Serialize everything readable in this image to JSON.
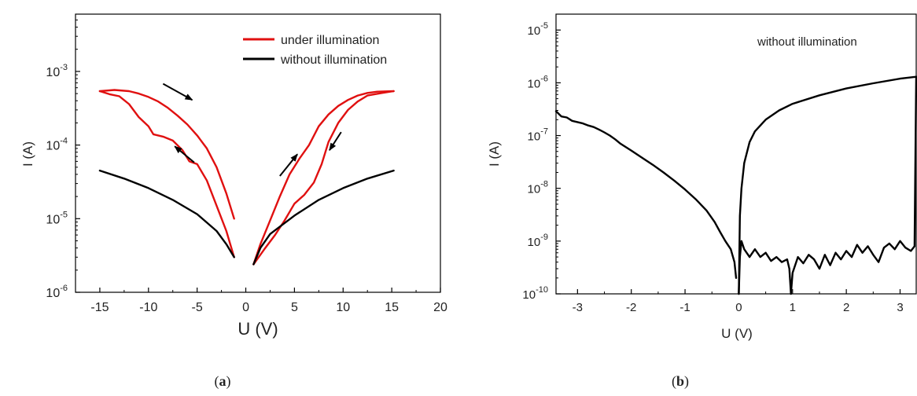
{
  "panels": [
    {
      "id": "a",
      "label_open": "(",
      "label_letter": "a",
      "label_close": ")",
      "chart_data": {
        "type": "line",
        "title": "",
        "xlabel": "U (V)",
        "ylabel": "I (A)",
        "x_scale": "linear",
        "y_scale": "log",
        "xlim": [
          -17.5,
          20
        ],
        "ylim": [
          1e-06,
          0.006
        ],
        "x_ticks": [
          -15,
          -10,
          -5,
          0,
          5,
          10,
          15,
          20
        ],
        "x_tick_labels": [
          "-15",
          "-10",
          "-5",
          "0",
          "5",
          "10",
          "15",
          "20"
        ],
        "y_ticks": [
          {
            "value": 1e-06,
            "base": "10",
            "exp": "-6"
          },
          {
            "value": 1e-05,
            "base": "10",
            "exp": "-5"
          },
          {
            "value": 0.0001,
            "base": "10",
            "exp": "-4"
          },
          {
            "value": 0.001,
            "base": "10",
            "exp": "-3"
          }
        ],
        "grid": false,
        "legend_position": "top-right",
        "series": [
          {
            "name": "under illumination",
            "color": "#e01010",
            "segments": [
              [
                [
                  -1.2,
                  1e-05
                ],
                [
                  -2,
                  2.2e-05
                ],
                [
                  -3,
                  5e-05
                ],
                [
                  -4,
                  9e-05
                ],
                [
                  -5,
                  0.000135
                ],
                [
                  -6,
                  0.00019
                ],
                [
                  -7,
                  0.00025
                ],
                [
                  -8,
                  0.00032
                ],
                [
                  -9,
                  0.00039
                ],
                [
                  -10,
                  0.00045
                ],
                [
                  -11,
                  0.0005
                ],
                [
                  -12,
                  0.00054
                ],
                [
                  -13.5,
                  0.00056
                ],
                [
                  -15,
                  0.00054
                ]
              ],
              [
                [
                  -15,
                  0.00054
                ],
                [
                  -14,
                  0.00049
                ],
                [
                  -13,
                  0.00046
                ],
                [
                  -12,
                  0.00036
                ],
                [
                  -11,
                  0.00024
                ],
                [
                  -10,
                  0.00018
                ],
                [
                  -9.5,
                  0.00014
                ],
                [
                  -8.5,
                  0.00013
                ],
                [
                  -7.5,
                  0.000115
                ],
                [
                  -6.5,
                  8.5e-05
                ],
                [
                  -5.8,
                  6e-05
                ],
                [
                  -5,
                  5.5e-05
                ],
                [
                  -4,
                  3.3e-05
                ],
                [
                  -3,
                  1.5e-05
                ],
                [
                  -2,
                  6.8e-06
                ],
                [
                  -1.2,
                  3e-06
                ]
              ],
              [
                [
                  0.8,
                  2.4e-06
                ],
                [
                  1.5,
                  4.5e-06
                ],
                [
                  2.5,
                  9.5e-06
                ],
                [
                  3.5,
                  2e-05
                ],
                [
                  4.5,
                  4e-05
                ],
                [
                  5.5,
                  6.5e-05
                ],
                [
                  6.5,
                  0.0001
                ],
                [
                  7.5,
                  0.00018
                ],
                [
                  8.5,
                  0.00026
                ],
                [
                  9.5,
                  0.00034
                ],
                [
                  10.5,
                  0.00041
                ],
                [
                  11.5,
                  0.00047
                ],
                [
                  12.5,
                  0.00051
                ],
                [
                  13.5,
                  0.00053
                ],
                [
                  15.2,
                  0.00054
                ]
              ],
              [
                [
                  15.2,
                  0.00054
                ],
                [
                  14,
                  0.00051
                ],
                [
                  12.5,
                  0.00047
                ],
                [
                  11.5,
                  0.00039
                ],
                [
                  10.5,
                  0.0003
                ],
                [
                  9.5,
                  0.0002
                ],
                [
                  8.5,
                  0.00011
                ],
                [
                  7.8,
                  5.5e-05
                ],
                [
                  7,
                  3.1e-05
                ],
                [
                  6,
                  2.1e-05
                ],
                [
                  5,
                  1.6e-05
                ],
                [
                  4,
                  9.5e-06
                ],
                [
                  3,
                  6e-06
                ],
                [
                  2,
                  4e-06
                ],
                [
                  0.8,
                  2.4e-06
                ]
              ]
            ]
          },
          {
            "name": "without illumination",
            "color": "#000000",
            "segments": [
              [
                [
                  -15,
                  4.5e-05
                ],
                [
                  -12.5,
                  3.5e-05
                ],
                [
                  -10,
                  2.6e-05
                ],
                [
                  -7.5,
                  1.8e-05
                ],
                [
                  -5,
                  1.15e-05
                ],
                [
                  -3,
                  6.8e-06
                ],
                [
                  -2,
                  4.5e-06
                ],
                [
                  -1.2,
                  3e-06
                ]
              ],
              [
                [
                  0.8,
                  2.4e-06
                ],
                [
                  1.5,
                  4e-06
                ],
                [
                  2.5,
                  6.2e-06
                ],
                [
                  5,
                  1.1e-05
                ],
                [
                  7.5,
                  1.8e-05
                ],
                [
                  10,
                  2.6e-05
                ],
                [
                  12.5,
                  3.5e-05
                ],
                [
                  15.2,
                  4.5e-05
                ]
              ]
            ]
          }
        ],
        "arrows": [
          {
            "from": [
              -8.5,
              0.00068
            ],
            "to": [
              -5.5,
              0.00041
            ]
          },
          {
            "from": [
              -5.3,
              5.8e-05
            ],
            "to": [
              -7.3,
              9.6e-05
            ]
          },
          {
            "from": [
              3.5,
              3.8e-05
            ],
            "to": [
              5.3,
              7.5e-05
            ]
          },
          {
            "from": [
              9.8,
              0.00015
            ],
            "to": [
              8.6,
              8.5e-05
            ]
          }
        ]
      }
    },
    {
      "id": "b",
      "label_open": "(",
      "label_letter": "b",
      "label_close": ")",
      "chart_data": {
        "type": "line",
        "title": "",
        "annotation": "without illumination",
        "xlabel": "U (V)",
        "ylabel": "I (A)",
        "x_scale": "linear",
        "y_scale": "log",
        "xlim": [
          -3.4,
          3.3
        ],
        "ylim": [
          1e-10,
          2e-05
        ],
        "x_ticks": [
          -3,
          -2,
          -1,
          0,
          1,
          2,
          3
        ],
        "x_tick_labels": [
          "-3",
          "-2",
          "-1",
          "0",
          "1",
          "2",
          "3"
        ],
        "y_ticks": [
          {
            "value": 1e-10,
            "base": "10",
            "exp": "-10"
          },
          {
            "value": 1e-09,
            "base": "10",
            "exp": "-9"
          },
          {
            "value": 1e-08,
            "base": "10",
            "exp": "-8"
          },
          {
            "value": 1e-07,
            "base": "10",
            "exp": "-7"
          },
          {
            "value": 1e-06,
            "base": "10",
            "exp": "-6"
          },
          {
            "value": 1e-05,
            "base": "10",
            "exp": "-5"
          }
        ],
        "grid": false,
        "series": [
          {
            "color": "#000000",
            "segments": [
              [
                [
                  -3.4,
                  2.9e-07
                ],
                [
                  -3.3,
                  2.3e-07
                ],
                [
                  -3.2,
                  2.2e-07
                ],
                [
                  -3.1,
                  1.9e-07
                ],
                [
                  -3.0,
                  1.8e-07
                ],
                [
                  -2.9,
                  1.7e-07
                ],
                [
                  -2.8,
                  1.55e-07
                ],
                [
                  -2.7,
                  1.45e-07
                ],
                [
                  -2.6,
                  1.3e-07
                ],
                [
                  -2.5,
                  1.15e-07
                ],
                [
                  -2.4,
                  1e-07
                ],
                [
                  -2.3,
                  8.5e-08
                ],
                [
                  -2.2,
                  7e-08
                ],
                [
                  -2.0,
                  5.2e-08
                ],
                [
                  -1.8,
                  3.8e-08
                ],
                [
                  -1.6,
                  2.8e-08
                ],
                [
                  -1.4,
                  2e-08
                ],
                [
                  -1.2,
                  1.4e-08
                ],
                [
                  -1.0,
                  9.5e-09
                ],
                [
                  -0.8,
                  6.2e-09
                ],
                [
                  -0.6,
                  3.8e-09
                ],
                [
                  -0.45,
                  2.3e-09
                ],
                [
                  -0.35,
                  1.5e-09
                ],
                [
                  -0.25,
                  1e-09
                ],
                [
                  -0.15,
                  7e-10
                ],
                [
                  -0.08,
                  4e-10
                ],
                [
                  -0.05,
                  2e-10
                ]
              ],
              [
                [
                  0.0,
                  1e-10
                ],
                [
                  0.02,
                  3e-09
                ],
                [
                  0.05,
                  1e-08
                ],
                [
                  0.1,
                  3e-08
                ],
                [
                  0.2,
                  7.5e-08
                ],
                [
                  0.3,
                  1.2e-07
                ],
                [
                  0.5,
                  2e-07
                ],
                [
                  0.75,
                  3e-07
                ],
                [
                  1.0,
                  4e-07
                ],
                [
                  1.5,
                  5.8e-07
                ],
                [
                  2.0,
                  7.8e-07
                ],
                [
                  2.5,
                  9.8e-07
                ],
                [
                  3.0,
                  1.2e-06
                ],
                [
                  3.3,
                  1.3e-06
                ]
              ],
              [
                [
                  3.3,
                  1.3e-06
                ],
                [
                  3.28,
                  1e-08
                ],
                [
                  3.27,
                  8e-10
                ],
                [
                  3.2,
                  6.5e-10
                ],
                [
                  3.1,
                  7.5e-10
                ],
                [
                  3.0,
                  1e-09
                ],
                [
                  2.9,
                  7e-10
                ],
                [
                  2.8,
                  9e-10
                ],
                [
                  2.7,
                  7.5e-10
                ],
                [
                  2.6,
                  4e-10
                ],
                [
                  2.5,
                  5.5e-10
                ],
                [
                  2.4,
                  8e-10
                ],
                [
                  2.3,
                  6e-10
                ],
                [
                  2.2,
                  8.5e-10
                ],
                [
                  2.1,
                  5e-10
                ],
                [
                  2.0,
                  6.5e-10
                ],
                [
                  1.9,
                  4.5e-10
                ],
                [
                  1.8,
                  6e-10
                ],
                [
                  1.7,
                  3.5e-10
                ],
                [
                  1.6,
                  5.5e-10
                ],
                [
                  1.5,
                  3e-10
                ],
                [
                  1.4,
                  4.5e-10
                ],
                [
                  1.3,
                  5.5e-10
                ],
                [
                  1.2,
                  3.8e-10
                ],
                [
                  1.1,
                  5e-10
                ],
                [
                  1.0,
                  2.5e-10
                ],
                [
                  0.97,
                  1e-10
                ],
                [
                  0.94,
                  3e-10
                ],
                [
                  0.9,
                  4.5e-10
                ],
                [
                  0.8,
                  4e-10
                ],
                [
                  0.7,
                  5e-10
                ],
                [
                  0.6,
                  4.2e-10
                ],
                [
                  0.5,
                  6e-10
                ],
                [
                  0.4,
                  5e-10
                ],
                [
                  0.3,
                  7e-10
                ],
                [
                  0.2,
                  5e-10
                ],
                [
                  0.1,
                  7e-10
                ],
                [
                  0.05,
                  1e-09
                ],
                [
                  0.02,
                  5e-10
                ],
                [
                  0.0,
                  1e-10
                ]
              ]
            ]
          }
        ]
      }
    }
  ]
}
